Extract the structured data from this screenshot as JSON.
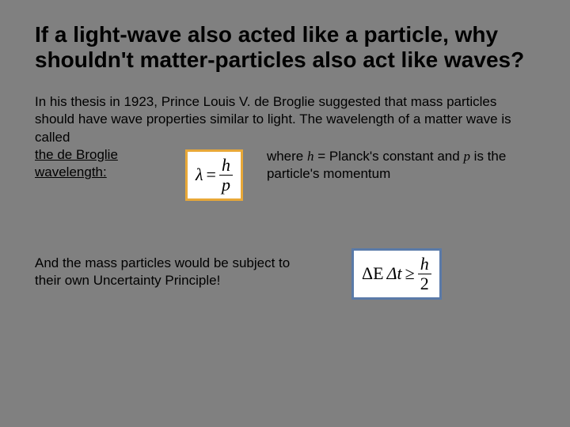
{
  "title": "If a light-wave also acted like a particle, why shouldn't matter-particles also act like waves?",
  "intro": "In his thesis in 1923, Prince Louis V. de Broglie suggested that mass particles should have wave properties similar to light.  The wavelength of a matter wave is called",
  "def_term": "the de Broglie wavelength:",
  "formula_debroglie": {
    "lhs": "λ",
    "eq": "=",
    "num": "h",
    "den": "p",
    "border_color": "#e8a838",
    "bg": "#ffffff"
  },
  "explain_prefix": "where ",
  "explain_h": "h",
  "explain_mid1": " = Planck's constant and ",
  "explain_p": "p",
  "explain_suffix": " is the particle's momentum",
  "uncertainty_text": "And the mass particles would be subject to their own Uncertainty Principle!",
  "formula_uncertainty": {
    "dE": "ΔE",
    "dt": "Δt",
    "ge": "≥",
    "num": "h",
    "den": "2",
    "border_color": "#5a7aa8",
    "bg": "#ffffff"
  },
  "colors": {
    "background": "#808080",
    "text": "#000000"
  }
}
